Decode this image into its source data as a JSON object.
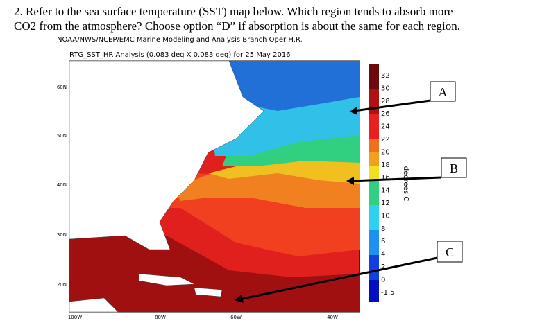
{
  "question": {
    "lines": [
      "2. Refer to the sea surface temperature (SST) map below. Which region tends to absorb more",
      "CO2 from the atmosphere? Choose option “D” if absorption is about the same for each region."
    ]
  },
  "map": {
    "source": "NOAA/NWS/NCEP/EMC Marine Modeling and Analysis Branch Oper H.R.",
    "title": "RTG_SST_HR Analysis (0.083 deg X 0.083 deg) for 25 May 2016",
    "lat_labels": [
      "60N",
      "50N",
      "40N",
      "30N",
      "20N"
    ],
    "lon_labels": [
      "100W",
      "80W",
      "60W",
      "40W"
    ],
    "colorbar": {
      "labels": [
        "32",
        "30",
        "28",
        "26",
        "24",
        "22",
        "20",
        "18",
        "16",
        "14",
        "12",
        "10",
        "8",
        "6",
        "4",
        "2",
        "0",
        "-1.5"
      ],
      "unit": "degrees C"
    }
  },
  "options": [
    "A",
    "B",
    "C"
  ]
}
